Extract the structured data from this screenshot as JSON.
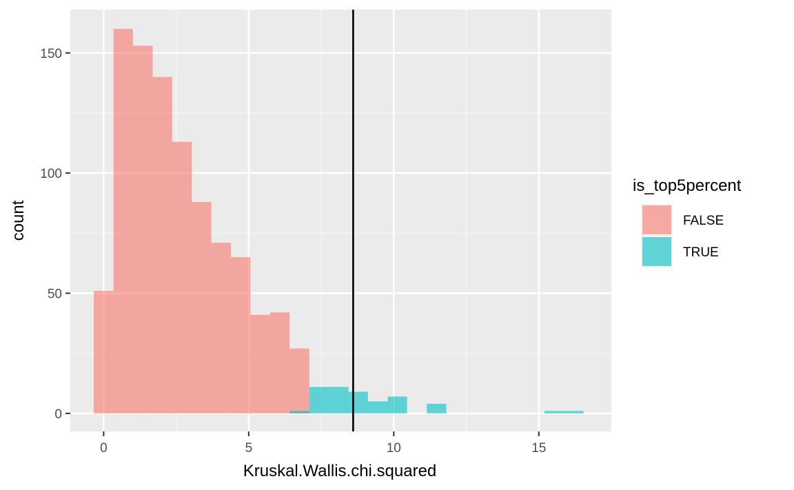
{
  "chart_data": {
    "type": "bar",
    "subtype": "histogram",
    "xlabel": "Kruskal.Wallis.chi.squared",
    "ylabel": "count",
    "xlim": [
      -1.15,
      17.5
    ],
    "ylim": [
      -7.5,
      168
    ],
    "x_ticks": [
      0,
      5,
      10,
      15
    ],
    "x_tick_labels": [
      "0",
      "5",
      "10",
      "15"
    ],
    "y_ticks": [
      0,
      50,
      100,
      150
    ],
    "y_tick_labels": [
      "0",
      "50",
      "100",
      "150"
    ],
    "grid": true,
    "vline": {
      "x": 8.6,
      "color": "#000000"
    },
    "legend": {
      "title": "is_top5percent",
      "position": "right",
      "items": [
        {
          "label": "FALSE",
          "color": "#F8766D"
        },
        {
          "label": "TRUE",
          "color": "#00BFC4"
        }
      ]
    },
    "series": [
      {
        "name": "FALSE",
        "color": "#F8766D",
        "bins": [
          {
            "x0": -0.34,
            "x1": 0.34,
            "count": 51
          },
          {
            "x0": 0.34,
            "x1": 1.01,
            "count": 160
          },
          {
            "x0": 1.01,
            "x1": 1.69,
            "count": 153
          },
          {
            "x0": 1.69,
            "x1": 2.36,
            "count": 140
          },
          {
            "x0": 2.36,
            "x1": 3.04,
            "count": 113
          },
          {
            "x0": 3.04,
            "x1": 3.71,
            "count": 88
          },
          {
            "x0": 3.71,
            "x1": 4.39,
            "count": 71
          },
          {
            "x0": 4.39,
            "x1": 5.06,
            "count": 65
          },
          {
            "x0": 5.06,
            "x1": 5.74,
            "count": 41
          },
          {
            "x0": 5.74,
            "x1": 6.41,
            "count": 42
          },
          {
            "x0": 6.41,
            "x1": 7.09,
            "count": 27
          }
        ]
      },
      {
        "name": "TRUE",
        "color": "#00BFC4",
        "bins": [
          {
            "x0": 6.41,
            "x1": 7.09,
            "count": 1
          },
          {
            "x0": 7.09,
            "x1": 7.76,
            "count": 11
          },
          {
            "x0": 7.76,
            "x1": 8.44,
            "count": 11
          },
          {
            "x0": 8.44,
            "x1": 9.11,
            "count": 9
          },
          {
            "x0": 9.11,
            "x1": 9.79,
            "count": 5
          },
          {
            "x0": 9.79,
            "x1": 10.46,
            "count": 7
          },
          {
            "x0": 10.46,
            "x1": 11.14,
            "count": 0
          },
          {
            "x0": 11.14,
            "x1": 11.81,
            "count": 4
          },
          {
            "x0": 11.81,
            "x1": 12.49,
            "count": 0
          },
          {
            "x0": 12.49,
            "x1": 13.16,
            "count": 0
          },
          {
            "x0": 13.16,
            "x1": 13.84,
            "count": 0
          },
          {
            "x0": 13.84,
            "x1": 14.51,
            "count": 0
          },
          {
            "x0": 14.51,
            "x1": 15.19,
            "count": 0
          },
          {
            "x0": 15.19,
            "x1": 15.86,
            "count": 1
          },
          {
            "x0": 15.86,
            "x1": 16.54,
            "count": 1
          }
        ]
      }
    ],
    "style": {
      "panel_bg": "#EBEBEB",
      "grid_major": "#FFFFFF",
      "grid_minor": "#F5F5F5",
      "fill_alpha": 0.6
    }
  }
}
